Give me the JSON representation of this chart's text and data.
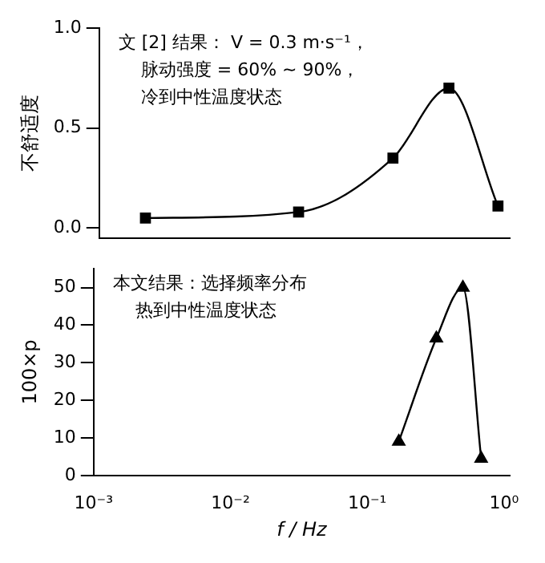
{
  "chart_data": [
    {
      "type": "line",
      "ylabel": "不舒适度",
      "x": [
        0.0022,
        0.03,
        0.15,
        0.39,
        0.9
      ],
      "values": [
        0.05,
        0.08,
        0.35,
        0.7,
        0.11
      ],
      "color": "#000000",
      "marker": "square",
      "log": "x",
      "xlim": [
        0.001,
        1.1
      ],
      "xticks": [
        {
          "value": 0.001,
          "label": null
        },
        {
          "value": 0.01,
          "label": null
        },
        {
          "value": 0.1,
          "label": null
        },
        {
          "value": 1,
          "label": null
        }
      ],
      "ylim": [
        -0.05,
        1.0
      ],
      "yticks": [
        {
          "value": 0,
          "label": "0.0"
        },
        {
          "value": 0.5,
          "label": "0.5"
        },
        {
          "value": 1,
          "label": "1.0"
        }
      ],
      "tick_labels": "y",
      "grid": false,
      "legend": false,
      "annotations": [
        "文 [2] 结果： V = 0.3 m·s⁻¹，",
        "脉动强度 = 60% ~ 90%，",
        "冷到中性温度状态"
      ]
    },
    {
      "type": "line",
      "ylabel": "100×p",
      "xlabel": "f / Hz",
      "x": [
        0.17,
        0.32,
        0.5,
        0.68
      ],
      "values": [
        9,
        36.5,
        50,
        4.5
      ],
      "color": "#000000",
      "marker": "triangle",
      "log": "x",
      "xlim": [
        0.001,
        1.1
      ],
      "xticks": [
        {
          "value": 0.001,
          "label": "10⁻³"
        },
        {
          "value": 0.01,
          "label": "10⁻²"
        },
        {
          "value": 0.1,
          "label": "10⁻¹"
        },
        {
          "value": 1,
          "label": "10⁰"
        }
      ],
      "ylim": [
        0,
        55
      ],
      "yticks": [
        0,
        10,
        20,
        30,
        40,
        50
      ],
      "grid": false,
      "legend": false,
      "annotations": [
        "本文结果：选择频率分布",
        "热到中性温度状态"
      ]
    }
  ]
}
